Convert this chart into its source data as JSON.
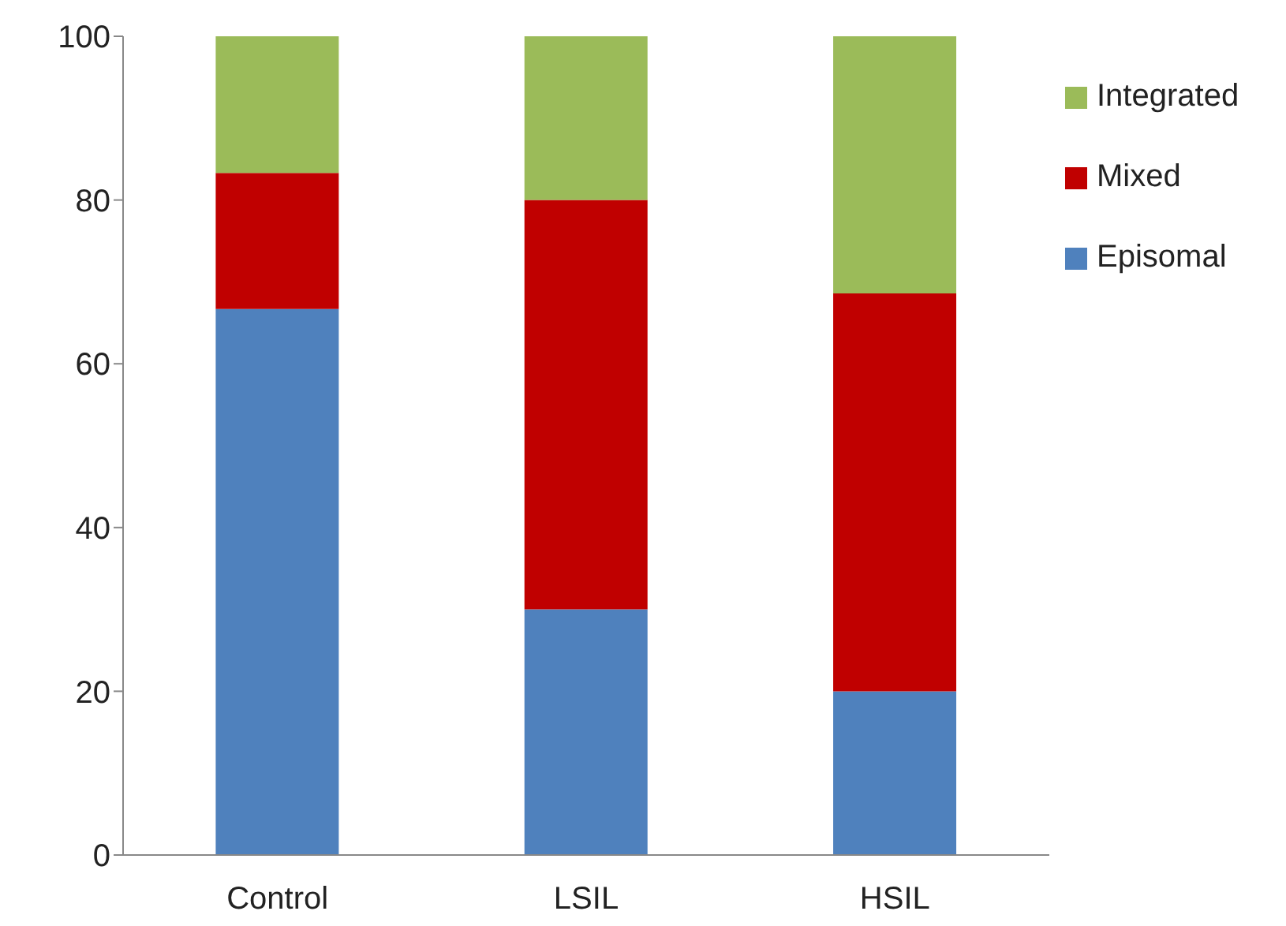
{
  "chart_data": {
    "type": "bar",
    "stacked": true,
    "categories": [
      "Control",
      "LSIL",
      "HSIL"
    ],
    "series": [
      {
        "name": "Episomal",
        "color": "#4f81bd",
        "values": [
          66.7,
          30,
          20
        ]
      },
      {
        "name": "Mixed",
        "color": "#c00000",
        "values": [
          16.6,
          50,
          48.6
        ]
      },
      {
        "name": "Integrated",
        "color": "#9bbb59",
        "values": [
          16.7,
          20,
          31.4
        ]
      }
    ],
    "ylim": [
      0,
      100
    ],
    "yticks": [
      0,
      20,
      40,
      60,
      80,
      100
    ],
    "grid": false,
    "legend": "right"
  }
}
